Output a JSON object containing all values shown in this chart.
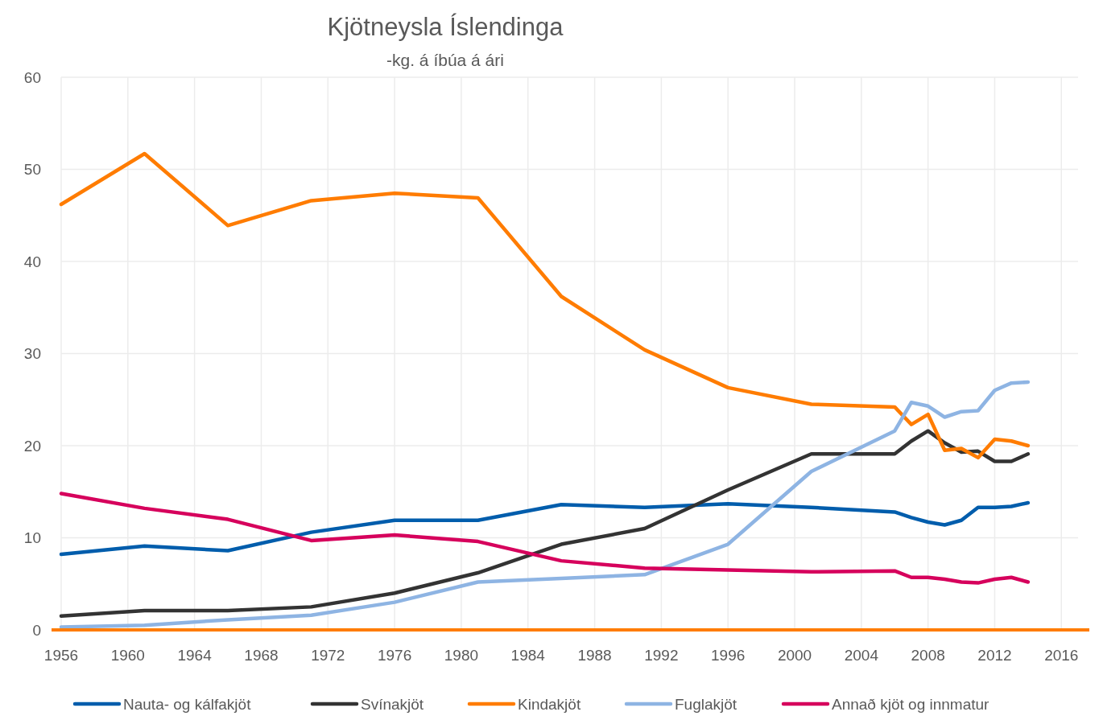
{
  "chart_data": {
    "type": "line",
    "title": "Kjötneysla Íslendinga",
    "subtitle": "-kg. á íbúa á ári",
    "x": [
      1956,
      1961,
      1966,
      1971,
      1976,
      1981,
      1986,
      1991,
      1996,
      2001,
      2006,
      2007,
      2008,
      2009,
      2010,
      2011,
      2012,
      2013,
      2014
    ],
    "xlim": [
      1956,
      2017
    ],
    "xticks": [
      1956,
      1960,
      1964,
      1968,
      1972,
      1976,
      1980,
      1984,
      1988,
      1992,
      1996,
      2000,
      2004,
      2008,
      2012,
      2016
    ],
    "ylim": [
      0,
      60
    ],
    "yticks": [
      0,
      10,
      20,
      30,
      40,
      50,
      60
    ],
    "grid": true,
    "legend": "bottom",
    "marker": "none",
    "line_style": "solid",
    "series": [
      {
        "name": "Nauta- og kálfakjöt",
        "color": "#005dac",
        "values": [
          8.2,
          9.1,
          8.6,
          10.6,
          11.9,
          11.9,
          13.6,
          13.3,
          13.7,
          13.3,
          12.8,
          12.2,
          11.7,
          11.4,
          11.9,
          13.3,
          13.3,
          13.4,
          13.8
        ]
      },
      {
        "name": "Svínakjöt",
        "color": "#333333",
        "values": [
          1.5,
          2.1,
          2.1,
          2.5,
          4.0,
          6.2,
          9.3,
          11.0,
          15.2,
          19.1,
          19.1,
          20.5,
          21.6,
          20.3,
          19.3,
          19.4,
          18.3,
          18.3,
          19.1
        ]
      },
      {
        "name": "Kindakjöt",
        "color": "#ff7c00",
        "values": [
          46.2,
          51.7,
          43.9,
          46.6,
          47.4,
          46.9,
          36.2,
          30.4,
          26.3,
          24.5,
          24.2,
          22.3,
          23.4,
          19.5,
          19.7,
          18.7,
          20.7,
          20.5,
          20.0
        ]
      },
      {
        "name": "Fuglakjöt",
        "color": "#8eb4e3",
        "values": [
          0.3,
          0.5,
          1.1,
          1.6,
          3.0,
          5.2,
          5.6,
          6.0,
          9.3,
          17.2,
          21.6,
          24.7,
          24.3,
          23.1,
          23.7,
          23.8,
          26.0,
          26.8,
          26.9
        ]
      },
      {
        "name": "Annað kjöt og innmatur",
        "color": "#d6005c",
        "values": [
          14.8,
          13.2,
          12.0,
          9.7,
          10.3,
          9.6,
          7.5,
          6.7,
          6.5,
          6.3,
          6.4,
          5.7,
          5.7,
          5.5,
          5.2,
          5.1,
          5.5,
          5.7,
          5.2
        ]
      }
    ]
  }
}
